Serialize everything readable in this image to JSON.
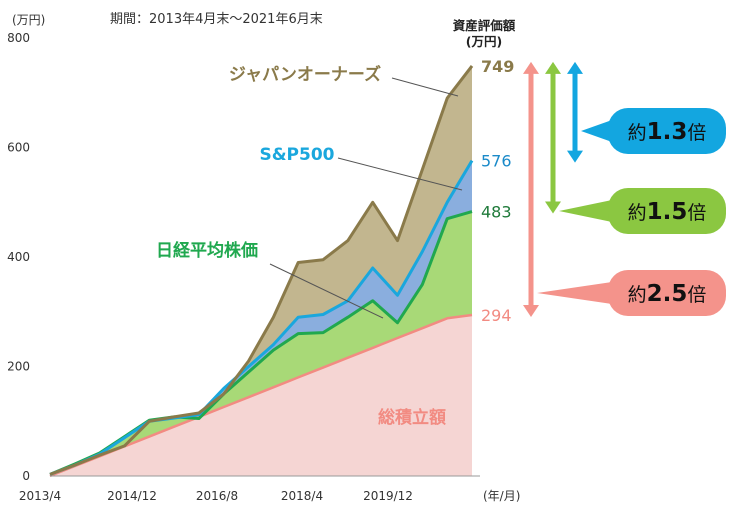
{
  "chart_data": {
    "type": "area",
    "period": "期間：2013年4月末～2021年6月末",
    "y_unit": "(万円)",
    "x_unit": "(年/月)",
    "value_header_line1": "資産評価額",
    "value_header_line2": "(万円)",
    "ylim": [
      0,
      800
    ],
    "yticks": [
      "0",
      "200",
      "400",
      "600",
      "800"
    ],
    "xticks": [
      "2013/4",
      "2014/12",
      "2016/8",
      "2018/4",
      "2019/12"
    ],
    "x": [
      "2013/4",
      "2013/10",
      "2014/4",
      "2014/10",
      "2015/4",
      "2015/10",
      "2016/4",
      "2016/10",
      "2017/4",
      "2017/10",
      "2018/4",
      "2018/10",
      "2019/4",
      "2019/10",
      "2020/4",
      "2020/10",
      "2021/4",
      "2021/6"
    ],
    "series": [
      {
        "key": "japan",
        "name": "ジャパンオーナーズ",
        "color": "#8a7a4a",
        "fill": "#c2b68f",
        "end_label": "749",
        "end_color": "#8a7a4a",
        "values": [
          3,
          20,
          38,
          55,
          100,
          108,
          115,
          150,
          210,
          290,
          390,
          395,
          430,
          500,
          430,
          560,
          690,
          749
        ]
      },
      {
        "key": "sp500",
        "name": "S&P500",
        "color": "#1aa7dd",
        "fill": "#8aaede",
        "end_label": "576",
        "end_color": "#1a8ac9",
        "values": [
          3,
          20,
          40,
          70,
          100,
          106,
          112,
          160,
          200,
          240,
          290,
          295,
          320,
          380,
          330,
          410,
          500,
          576
        ]
      },
      {
        "key": "nikkei",
        "name": "日経平均株価",
        "color": "#20a84f",
        "fill": "#a8d977",
        "end_label": "483",
        "end_color": "#1f7a3a",
        "values": [
          3,
          22,
          42,
          72,
          102,
          108,
          105,
          150,
          190,
          230,
          260,
          262,
          290,
          320,
          280,
          350,
          470,
          483
        ]
      },
      {
        "key": "total",
        "name": "総積立額",
        "color": "#f28b82",
        "fill": "#f5d5d3",
        "end_label": "294",
        "end_color": "#f28b82",
        "values": [
          0,
          18,
          36,
          54,
          72,
          90,
          108,
          126,
          144,
          162,
          180,
          198,
          216,
          234,
          252,
          270,
          288,
          294
        ]
      }
    ]
  },
  "callouts": [
    {
      "prefix": "約",
      "multiple": "1.3",
      "suffix": "倍",
      "color": "#13a6e0",
      "from_value": 749,
      "to_value": 576
    },
    {
      "prefix": "約",
      "multiple": "1.5",
      "suffix": "倍",
      "color": "#8bc741",
      "from_value": 749,
      "to_value": 483
    },
    {
      "prefix": "約",
      "multiple": "2.5",
      "suffix": "倍",
      "color": "#f4938b",
      "from_value": 749,
      "to_value": 294
    }
  ]
}
